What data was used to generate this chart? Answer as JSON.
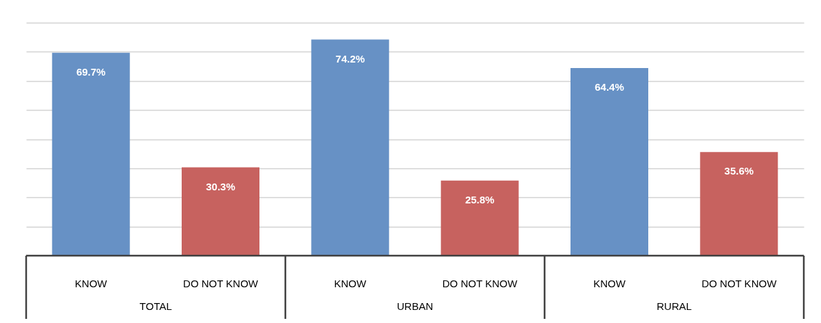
{
  "chart_data": {
    "type": "bar",
    "categories": [
      "TOTAL",
      "URBAN",
      "RURAL"
    ],
    "series": [
      {
        "name": "KNOW",
        "color": "#6791c5",
        "values": [
          69.7,
          74.2,
          64.4
        ],
        "value_labels": [
          "69.7%",
          "74.2%",
          "64.4%"
        ]
      },
      {
        "name": "DO NOT KNOW",
        "color": "#c7625f",
        "values": [
          30.3,
          25.8,
          35.6
        ],
        "value_labels": [
          "30.3%",
          "25.8%",
          "35.6%"
        ]
      }
    ],
    "ylim": [
      0,
      80
    ],
    "yticks": [
      {
        "value": 0,
        "label": null
      },
      {
        "value": 10,
        "label": null
      },
      {
        "value": 20,
        "label": null
      },
      {
        "value": 30,
        "label": null
      },
      {
        "value": 40,
        "label": null
      },
      {
        "value": 50,
        "label": null
      },
      {
        "value": 60,
        "label": null
      },
      {
        "value": 70,
        "label": null
      },
      {
        "value": 80,
        "label": null
      }
    ],
    "grid": "y",
    "tick_labels": "x"
  }
}
